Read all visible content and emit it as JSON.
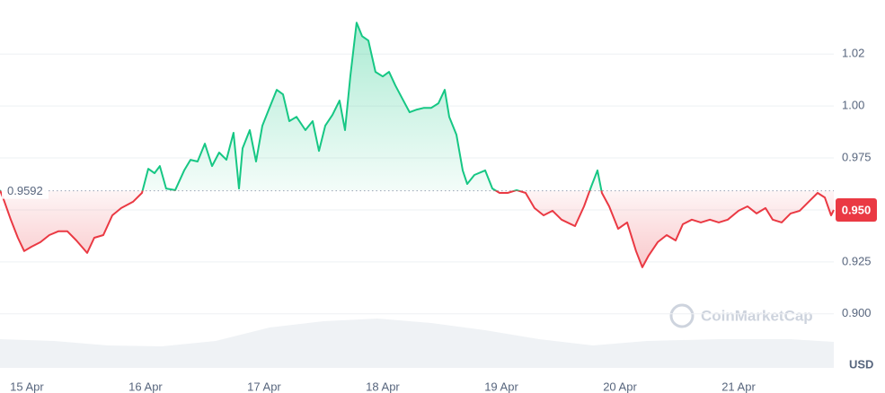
{
  "chart_data": {
    "type": "line",
    "x": [
      -0.227,
      -0.189,
      -0.136,
      -0.076,
      -0.023,
      0.038,
      0.114,
      0.189,
      0.265,
      0.341,
      0.417,
      0.508,
      0.568,
      0.644,
      0.72,
      0.795,
      0.894,
      0.97,
      1.023,
      1.076,
      1.121,
      1.174,
      1.25,
      1.326,
      1.379,
      1.439,
      1.5,
      1.561,
      1.621,
      1.682,
      1.742,
      1.788,
      1.818,
      1.879,
      1.932,
      1.985,
      2.045,
      2.106,
      2.159,
      2.212,
      2.273,
      2.348,
      2.409,
      2.462,
      2.515,
      2.576,
      2.636,
      2.682,
      2.727,
      2.78,
      2.826,
      2.879,
      2.939,
      3.0,
      3.053,
      3.106,
      3.167,
      3.227,
      3.288,
      3.348,
      3.409,
      3.47,
      3.523,
      3.561,
      3.621,
      3.674,
      3.712,
      3.773,
      3.864,
      3.924,
      3.985,
      4.053,
      4.129,
      4.205,
      4.28,
      4.356,
      4.432,
      4.508,
      4.621,
      4.697,
      4.758,
      4.811,
      4.848,
      4.909,
      4.985,
      5.061,
      5.136,
      5.189,
      5.242,
      5.318,
      5.394,
      5.47,
      5.53,
      5.606,
      5.682,
      5.758,
      5.833,
      5.909,
      6.0,
      6.076,
      6.152,
      6.227,
      6.288,
      6.364,
      6.439,
      6.515,
      6.591,
      6.667,
      6.727,
      6.78,
      6.803
    ],
    "values": [
      0.9595,
      0.9539,
      0.9453,
      0.9366,
      0.9302,
      0.9323,
      0.9345,
      0.9379,
      0.9397,
      0.9397,
      0.9353,
      0.9293,
      0.9366,
      0.9379,
      0.9474,
      0.9509,
      0.9539,
      0.9582,
      0.9698,
      0.9677,
      0.9711,
      0.9603,
      0.9595,
      0.969,
      0.9741,
      0.9733,
      0.9819,
      0.9711,
      0.9776,
      0.9741,
      0.9871,
      0.9603,
      0.9797,
      0.9884,
      0.9733,
      0.9905,
      0.9991,
      1.0078,
      1.0056,
      0.9927,
      0.9948,
      0.9884,
      0.9927,
      0.9784,
      0.9905,
      0.9957,
      1.0026,
      0.9884,
      1.0142,
      1.0401,
      1.0336,
      1.0315,
      1.0164,
      1.0142,
      1.0164,
      1.0099,
      1.0034,
      0.997,
      0.9983,
      0.9991,
      0.9991,
      1.0013,
      1.0078,
      0.9948,
      0.9862,
      0.969,
      0.9625,
      0.9668,
      0.969,
      0.9603,
      0.9582,
      0.9582,
      0.9595,
      0.9582,
      0.9509,
      0.9474,
      0.9496,
      0.9453,
      0.9422,
      0.9517,
      0.9612,
      0.969,
      0.9582,
      0.9517,
      0.9409,
      0.944,
      0.9302,
      0.9224,
      0.928,
      0.9345,
      0.9379,
      0.9353,
      0.9431,
      0.9453,
      0.944,
      0.9453,
      0.944,
      0.9453,
      0.9496,
      0.9517,
      0.9483,
      0.9509,
      0.9453,
      0.944,
      0.9483,
      0.9496,
      0.9539,
      0.9582,
      0.956,
      0.9474,
      0.95
    ],
    "up_color": "#16c784",
    "down_color": "#ea3943",
    "baseline": 0.9592,
    "current_price": {
      "value": 0.95,
      "label": "0.950"
    },
    "xlim": [
      -0.227,
      6.803
    ],
    "xticks": [
      {
        "value": 0,
        "label": "15 Apr"
      },
      {
        "value": 1,
        "label": "16 Apr"
      },
      {
        "value": 2,
        "label": "17 Apr"
      },
      {
        "value": 3,
        "label": "18 Apr"
      },
      {
        "value": 4,
        "label": "19 Apr"
      },
      {
        "value": 5,
        "label": "20 Apr"
      },
      {
        "value": 6,
        "label": "21 Apr"
      }
    ],
    "ylim": [
      0.874,
      1.051
    ],
    "yticks": [
      {
        "value": 0.9,
        "label": "0.900"
      },
      0.925,
      {
        "value": 0.95,
        "label": "0.950"
      },
      0.975,
      {
        "value": 1.0,
        "label": "1.00"
      },
      {
        "value": 1.025,
        "label": "1.02"
      }
    ],
    "grid": true,
    "y_unit": "USD",
    "watermark": "CoinMarketCap"
  }
}
